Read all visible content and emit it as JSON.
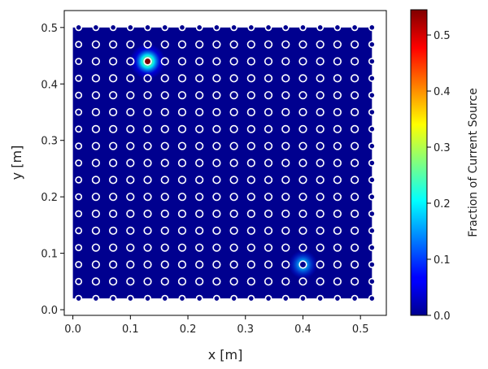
{
  "chart_data": {
    "type": "heatmap",
    "xlabel": "x [m]",
    "ylabel": "y [m]",
    "xlim": [
      -0.015,
      0.545
    ],
    "ylim": [
      -0.01,
      0.53
    ],
    "x_ticks": [
      0.0,
      0.1,
      0.2,
      0.3,
      0.4,
      0.5
    ],
    "x_tick_labels": [
      "0.0",
      "0.1",
      "0.2",
      "0.3",
      "0.4",
      "0.5"
    ],
    "y_ticks": [
      0.0,
      0.1,
      0.2,
      0.3,
      0.4,
      0.5
    ],
    "y_tick_labels": [
      "0.0",
      "0.1",
      "0.2",
      "0.3",
      "0.4",
      "0.5"
    ],
    "grid": false,
    "field_extent": {
      "x": [
        0.0,
        0.52
      ],
      "y": [
        0.02,
        0.5
      ]
    },
    "electrode_grid": {
      "x_start": 0.01,
      "x_step": 0.03,
      "x_count": 18,
      "y_start": 0.02,
      "y_step": 0.03,
      "y_count": 17
    },
    "hotspots": [
      {
        "x": 0.13,
        "y": 0.44,
        "value": 0.54
      },
      {
        "x": 0.4,
        "y": 0.08,
        "value": 0.2
      }
    ],
    "highlighted_electrode": {
      "x": 0.13,
      "y": 0.44
    },
    "colorbar": {
      "label": "Fraction of Current Source",
      "colormap": "jet",
      "min": 0.0,
      "max": 0.545,
      "ticks": [
        0.0,
        0.1,
        0.2,
        0.3,
        0.4,
        0.5
      ],
      "tick_labels": [
        "0.0",
        "0.1",
        "0.2",
        "0.3",
        "0.4",
        "0.5"
      ]
    },
    "colors": {
      "background": "#00008f",
      "electrode_fill": "#00008f",
      "electrode_stroke": "#ffffff",
      "highlight_fill": "#7f0000"
    }
  }
}
